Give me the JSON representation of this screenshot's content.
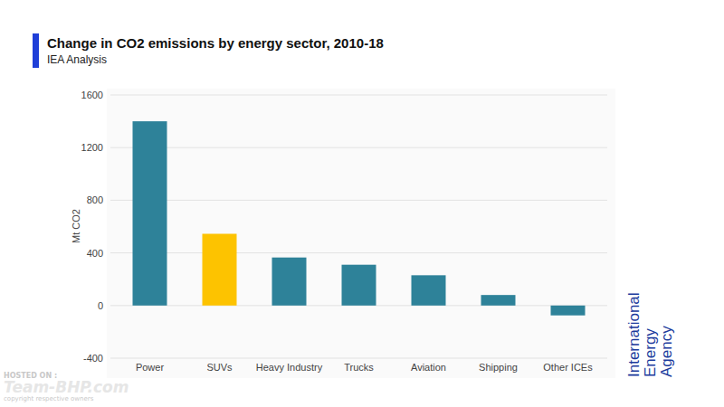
{
  "chart_data": {
    "type": "bar",
    "title": "Change in CO2 emissions by energy sector, 2010-18",
    "subtitle": "IEA Analysis",
    "y_label": "Mt CO2",
    "categories": [
      "Power",
      "SUVs",
      "Heavy Industry",
      "Trucks",
      "Aviation",
      "Shipping",
      "Other ICEs"
    ],
    "values": [
      1400,
      545,
      365,
      310,
      230,
      80,
      -75
    ],
    "colors": [
      "#2e8299",
      "#fdc300",
      "#2e8299",
      "#2e8299",
      "#2e8299",
      "#2e8299",
      "#2e8299"
    ],
    "ylim": [
      -400,
      1600
    ],
    "yticks": [
      -400,
      0,
      400,
      800,
      1200,
      1600
    ],
    "grid": true,
    "annotations": [
      "International Energy Agency",
      "HOSTED ON :",
      "Team-BHP.com",
      "copyright respective owners"
    ]
  }
}
